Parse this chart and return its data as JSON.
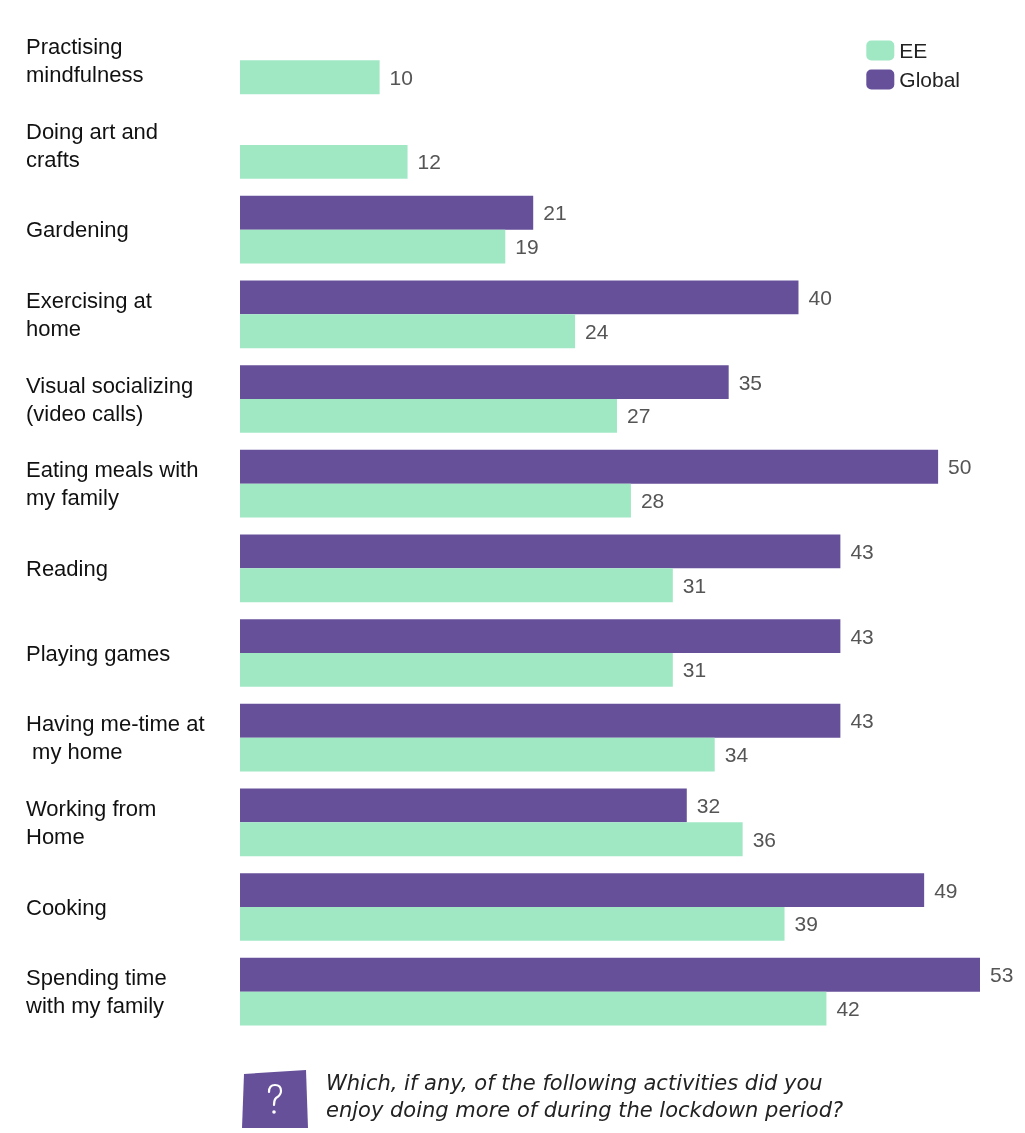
{
  "chart_data": {
    "type": "bar",
    "orientation": "horizontal",
    "data_labels": true,
    "legend": "top right",
    "categories": [
      "Practising mindfulness",
      "Doing art and crafts",
      "Gardening",
      "Exercising at home",
      "Visual socializing (video calls)",
      "Eating meals with my family",
      "Reading",
      "Playing games",
      "Having me-time at my home",
      "Working from Home",
      "Cooking",
      "Spending time with my family"
    ],
    "series": [
      {
        "name": "Global",
        "color": "#66509a",
        "values": [
          null,
          null,
          21,
          40,
          35,
          50,
          43,
          43,
          43,
          32,
          49,
          53
        ]
      },
      {
        "name": "EE",
        "color": "#a0e8c4",
        "values": [
          10,
          12,
          19,
          24,
          27,
          28,
          31,
          31,
          34,
          36,
          39,
          42
        ]
      }
    ],
    "annotations": [
      "Which, if any, of the following activities did you enjoy doing more of during the lockdown period?"
    ]
  }
}
